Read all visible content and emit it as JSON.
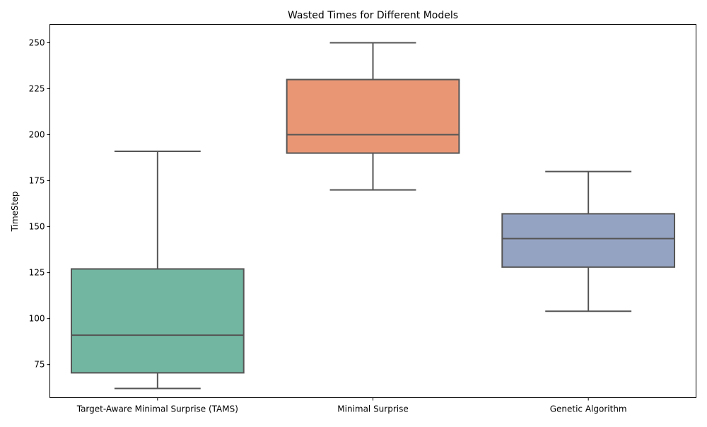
{
  "chart_data": {
    "type": "box",
    "title": "Wasted Times for Different Models",
    "xlabel": "",
    "ylabel": "TimeStep",
    "ylim": [
      57,
      260
    ],
    "yticks": [
      75,
      100,
      125,
      150,
      175,
      200,
      225,
      250
    ],
    "grid": false,
    "categories": [
      "Target-Aware Minimal Surprise (TAMS)",
      "Minimal Surprise",
      "Genetic Algorithm"
    ],
    "boxes": [
      {
        "category": "Target-Aware Minimal Surprise (TAMS)",
        "whisker_low": 62,
        "q1": 70.5,
        "median": 91,
        "q3": 127,
        "whisker_high": 191,
        "color": "#72b6a1"
      },
      {
        "category": "Minimal Surprise",
        "whisker_low": 170,
        "q1": 190,
        "median": 200,
        "q3": 230,
        "whisker_high": 250,
        "color": "#e99675"
      },
      {
        "category": "Genetic Algorithm",
        "whisker_low": 104,
        "q1": 128,
        "median": 143.5,
        "q3": 157,
        "whisker_high": 180,
        "color": "#95a3c3"
      }
    ],
    "line_color": "#555555"
  }
}
